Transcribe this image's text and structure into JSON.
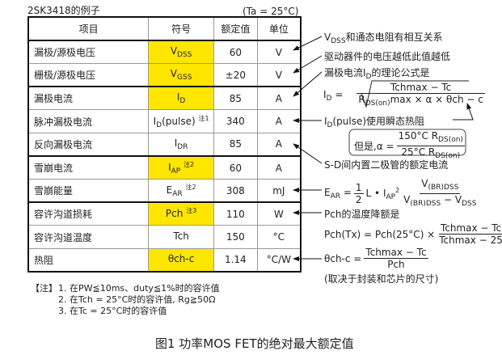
{
  "header": {
    "example_title": "2SK3418的例子",
    "condition": "(Ta = 25°C)"
  },
  "table": {
    "columns": [
      "项目",
      "符号",
      "额定值",
      "单位"
    ],
    "rows": [
      {
        "item": "漏极/源极电压",
        "sym": "V",
        "sub": "DSS",
        "note": "",
        "value": "60",
        "unit": "V",
        "highlight": true
      },
      {
        "item": "栅极/源极电压",
        "sym": "V",
        "sub": "GSS",
        "note": "",
        "value": "±20",
        "unit": "V",
        "highlight": true
      },
      {
        "item": "漏极电流",
        "sym": "I",
        "sub": "D",
        "note": "",
        "value": "85",
        "unit": "A",
        "highlight": true
      },
      {
        "item": "脉冲漏极电流",
        "sym": "I",
        "sub": "D",
        "tail": "(pulse)",
        "note": "注1",
        "value": "340",
        "unit": "A",
        "highlight": false
      },
      {
        "item": "反向漏极电流",
        "sym": "I",
        "sub": "DR",
        "note": "",
        "value": "85",
        "unit": "A",
        "highlight": false
      },
      {
        "item": "雪崩电流",
        "sym": "I",
        "sub": "AP",
        "note": "注2",
        "value": "60",
        "unit": "A",
        "highlight": true
      },
      {
        "item": "雪崩能量",
        "sym": "E",
        "sub": "AR",
        "note": "注2",
        "value": "308",
        "unit": "mJ",
        "highlight": false
      },
      {
        "item": "容许沟道损耗",
        "sym": "Pch",
        "sub": "",
        "note": "注3",
        "value": "110",
        "unit": "W",
        "highlight": true
      },
      {
        "item": "容许沟道温度",
        "sym": "Tch",
        "sub": "",
        "note": "",
        "value": "150",
        "unit": "°C",
        "highlight": false
      },
      {
        "item": "热阻",
        "sym": "θch-c",
        "sub": "",
        "note": "",
        "value": "1.14",
        "unit": "°C/W",
        "highlight": true
      }
    ]
  },
  "annotations": {
    "a1_pre": "V",
    "a1_sub": "DSS",
    "a1": "和通态电阻有相互关系",
    "a2": "驱动器件的电压越低此值越低",
    "a3_pre": "漏极电流I",
    "a3_sub": "D",
    "a3": "的理论公式是",
    "id_formula": {
      "lhs": "I",
      "lhs_sub": "D",
      "eq": "=",
      "num": "Tchmax − Tc",
      "den_pre": "R",
      "den_sub": "DS(on)",
      "den": "max × α × θch − c"
    },
    "a4_pre": "I",
    "a4_sub": "D",
    "a4": "(pulse)使用瞬态热阻",
    "alpha": {
      "pre": "但是,α =",
      "num": "150°C R",
      "num_sub": "DS(on)",
      "den": "25°C R",
      "den_sub": "DS(on)"
    },
    "a5": "S-D间内置二极管的额定电流",
    "ear": {
      "lhs": "E",
      "lhs_sub": "AR",
      "eq": "=",
      "half_num": "1",
      "half_den": "2",
      "mid": "L • I",
      "mid_sub": "AP",
      "mid_sup": "2",
      "num": "V",
      "num_sub": "(BR)DSS",
      "den": "V",
      "den_sub": "(BR)DSS",
      "den_tail": " − V",
      "den_tail_sub": "DSS"
    },
    "a6": "Pch的温度降额是",
    "pch": {
      "lhs": "Pch(Tx) = Pch(25°C) ×",
      "num": "Tchmax − Tc",
      "den": "Tchmax − 25"
    },
    "theta": {
      "lhs": "θch-c =",
      "num": "Tchmax − Tc",
      "den": "Pch"
    },
    "a7": "(取决于封装和芯片的尺寸)"
  },
  "notes": {
    "label": "【注】",
    "items": [
      "1. 在PW≦10ms、duty≦1%时的容许值",
      "2. 在Tch = 25°C时的容许值, Rg≧50Ω",
      "3. 在Tc = 25°C时的容许值"
    ]
  },
  "caption": "图1  功率MOS FET的绝对最大额定值",
  "colors": {
    "highlight": "#ffe600",
    "border": "#111111"
  }
}
